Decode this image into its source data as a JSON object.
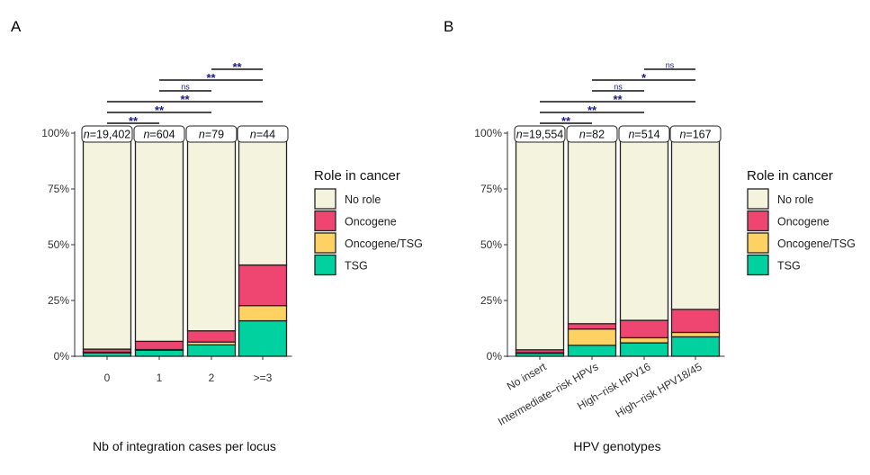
{
  "colors": {
    "No role": "#F4F4DE",
    "Oncogene": "#EE4670",
    "Oncogene/TSG": "#FDD262",
    "TSG": "#00D19F",
    "signif": "#1A1A8C"
  },
  "chart_data": [
    {
      "panel_label": "A",
      "type": "bar",
      "stacked": true,
      "xlabel": "Nb of integration cases per locus",
      "ylabel": "",
      "ylim": [
        0,
        100
      ],
      "yticks": [
        "0%",
        "25%",
        "50%",
        "75%",
        "100%"
      ],
      "categories": [
        "0",
        "1",
        "2",
        ">=3"
      ],
      "n_labels": [
        "19,402",
        "604",
        "79",
        "44"
      ],
      "series": [
        {
          "name": "TSG",
          "values": [
            1.5,
            2.7,
            5.1,
            15.9
          ]
        },
        {
          "name": "Oncogene/TSG",
          "values": [
            0.3,
            0.3,
            1.3,
            6.8
          ]
        },
        {
          "name": "Oncogene",
          "values": [
            1.4,
            3.7,
            5.0,
            18.2
          ]
        },
        {
          "name": "No role",
          "values": [
            96.8,
            93.3,
            88.6,
            59.1
          ]
        }
      ],
      "legend": {
        "title": "Role in cancer",
        "items": [
          "No role",
          "Oncogene",
          "Oncogene/TSG",
          "TSG"
        ],
        "placement": "right"
      },
      "comparisons": [
        {
          "from": 0,
          "to": 1,
          "label": "**"
        },
        {
          "from": 0,
          "to": 2,
          "label": "**"
        },
        {
          "from": 0,
          "to": 3,
          "label": "**"
        },
        {
          "from": 1,
          "to": 2,
          "label": "ns"
        },
        {
          "from": 1,
          "to": 3,
          "label": "**"
        },
        {
          "from": 2,
          "to": 3,
          "label": "**"
        }
      ],
      "rotate_labels": false
    },
    {
      "panel_label": "B",
      "type": "bar",
      "stacked": true,
      "xlabel": "HPV genotypes",
      "ylabel": "",
      "ylim": [
        0,
        100
      ],
      "yticks": [
        "0%",
        "25%",
        "50%",
        "75%",
        "100%"
      ],
      "categories": [
        "No insert",
        "Intermediate−risk HPVs",
        "High−risk HPV16",
        "High−risk HPV18/45"
      ],
      "n_labels": [
        "19,554",
        "82",
        "514",
        "167"
      ],
      "series": [
        {
          "name": "TSG",
          "values": [
            1.3,
            4.9,
            6.0,
            8.7
          ]
        },
        {
          "name": "Oncogene/TSG",
          "values": [
            0.3,
            7.3,
            2.3,
            2.0
          ]
        },
        {
          "name": "Oncogene",
          "values": [
            1.3,
            2.4,
            7.8,
            10.3
          ]
        },
        {
          "name": "No role",
          "values": [
            97.1,
            85.4,
            83.9,
            79.0
          ]
        }
      ],
      "legend": {
        "title": "Role in cancer",
        "items": [
          "No role",
          "Oncogene",
          "Oncogene/TSG",
          "TSG"
        ],
        "placement": "right"
      },
      "comparisons": [
        {
          "from": 0,
          "to": 1,
          "label": "**"
        },
        {
          "from": 0,
          "to": 2,
          "label": "**"
        },
        {
          "from": 0,
          "to": 3,
          "label": "**"
        },
        {
          "from": 1,
          "to": 2,
          "label": "ns"
        },
        {
          "from": 1,
          "to": 3,
          "label": "*"
        },
        {
          "from": 2,
          "to": 3,
          "label": "ns"
        }
      ],
      "rotate_labels": true
    }
  ]
}
